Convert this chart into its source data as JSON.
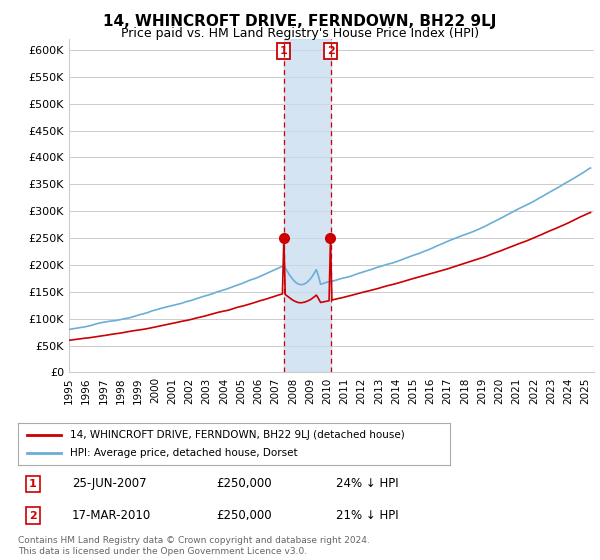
{
  "title": "14, WHINCROFT DRIVE, FERNDOWN, BH22 9LJ",
  "subtitle": "Price paid vs. HM Land Registry's House Price Index (HPI)",
  "ylabel_ticks": [
    "£0",
    "£50K",
    "£100K",
    "£150K",
    "£200K",
    "£250K",
    "£300K",
    "£350K",
    "£400K",
    "£450K",
    "£500K",
    "£550K",
    "£600K"
  ],
  "ylim": [
    0,
    620000
  ],
  "xlim_start": 1995.0,
  "xlim_end": 2025.5,
  "sale1_date": 2007.48,
  "sale1_price": 250000,
  "sale1_label": "1",
  "sale1_date_str": "25-JUN-2007",
  "sale1_price_str": "£250,000",
  "sale1_hpi_str": "24% ↓ HPI",
  "sale2_date": 2010.21,
  "sale2_price": 250000,
  "sale2_label": "2",
  "sale2_date_str": "17-MAR-2010",
  "sale2_price_str": "£250,000",
  "sale2_hpi_str": "21% ↓ HPI",
  "legend_line1": "14, WHINCROFT DRIVE, FERNDOWN, BH22 9LJ (detached house)",
  "legend_line2": "HPI: Average price, detached house, Dorset",
  "footer": "Contains HM Land Registry data © Crown copyright and database right 2024.\nThis data is licensed under the Open Government Licence v3.0.",
  "hpi_color": "#6baed6",
  "price_color": "#cc0000",
  "sale_marker_color": "#cc0000",
  "highlight_color": "#c6dbef",
  "box_color": "#cc0000",
  "grid_color": "#cccccc",
  "background_color": "#ffffff"
}
